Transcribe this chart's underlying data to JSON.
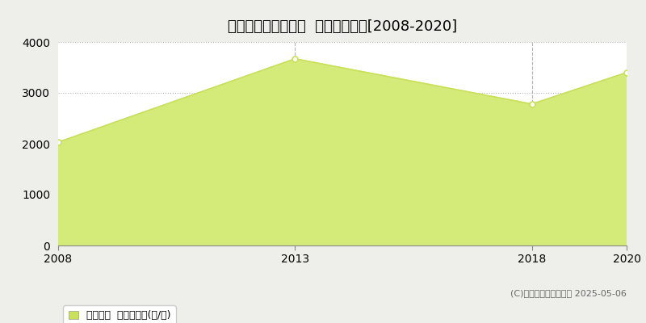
{
  "title": "東諸県郡国富町塚原  林地価格推移[2008-2020]",
  "years": [
    2008,
    2013,
    2018,
    2020
  ],
  "values": [
    2030,
    3670,
    2780,
    3400
  ],
  "line_color": "#c8e05a",
  "fill_color": "#d4eb7a",
  "fill_alpha": 1.0,
  "marker_color": "#c8e05a",
  "marker_size": 5,
  "ylim": [
    0,
    4000
  ],
  "yticks": [
    0,
    1000,
    2000,
    3000,
    4000
  ],
  "xticks": [
    2008,
    2013,
    2018,
    2020
  ],
  "grid_color": "#aaaaaa",
  "grid_style": "dotted",
  "grid_alpha": 0.9,
  "vline_color": "#aaaaaa",
  "vline_style": "--",
  "vline_positions": [
    2013,
    2018
  ],
  "legend_label": "林地価格  平均坪単価(円/坪)",
  "copyright_text": "(C)土地価格ドットコム 2025-05-06",
  "outer_bg_color": "#eeeeea",
  "plot_bg_color": "#ffffff",
  "title_fontsize": 13,
  "tick_fontsize": 10,
  "legend_fontsize": 9,
  "copyright_fontsize": 8,
  "xlim_left": 2008,
  "xlim_right": 2020
}
